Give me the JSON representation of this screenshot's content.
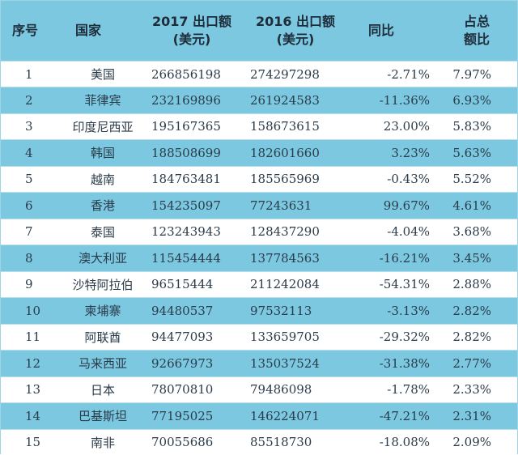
{
  "headers": {
    "rank": "序号",
    "country": "国家",
    "export2017_line1": "2017 出口额",
    "export2017_line2": "(美元)",
    "export2016_line1": "2016 出口额",
    "export2016_line2": "(美元)",
    "yoy": "同比",
    "share_line1": "占总",
    "share_line2": "额比"
  },
  "rows": [
    {
      "rank": "1",
      "country": "美国",
      "export2017": "266856198",
      "export2016": "274297298",
      "yoy": "-2.71%",
      "share": "7.97%"
    },
    {
      "rank": "2",
      "country": "菲律宾",
      "export2017": "232169896",
      "export2016": "261924583",
      "yoy": "-11.36%",
      "share": "6.93%"
    },
    {
      "rank": "3",
      "country": "印度尼西亚",
      "export2017": "195167365",
      "export2016": "158673615",
      "yoy": "23.00%",
      "share": "5.83%"
    },
    {
      "rank": "4",
      "country": "韩国",
      "export2017": "188508699",
      "export2016": "182601660",
      "yoy": "3.23%",
      "share": "5.63%"
    },
    {
      "rank": "5",
      "country": "越南",
      "export2017": "184763481",
      "export2016": "185565969",
      "yoy": "-0.43%",
      "share": "5.52%"
    },
    {
      "rank": "6",
      "country": "香港",
      "export2017": "154235097",
      "export2016": "77243631",
      "yoy": "99.67%",
      "share": "4.61%"
    },
    {
      "rank": "7",
      "country": "泰国",
      "export2017": "123243943",
      "export2016": "128437290",
      "yoy": "-4.04%",
      "share": "3.68%"
    },
    {
      "rank": "8",
      "country": "澳大利亚",
      "export2017": "115454444",
      "export2016": "137784563",
      "yoy": "-16.21%",
      "share": "3.45%"
    },
    {
      "rank": "9",
      "country": "沙特阿拉伯",
      "export2017": "96515444",
      "export2016": "211242084",
      "yoy": "-54.31%",
      "share": "2.88%"
    },
    {
      "rank": "10",
      "country": "柬埔寨",
      "export2017": "94480537",
      "export2016": "97532113",
      "yoy": "-3.13%",
      "share": "2.82%"
    },
    {
      "rank": "11",
      "country": "阿联酋",
      "export2017": "94477093",
      "export2016": "133659705",
      "yoy": "-29.32%",
      "share": "2.82%"
    },
    {
      "rank": "12",
      "country": "马来西亚",
      "export2017": "92667973",
      "export2016": "135037524",
      "yoy": "-31.38%",
      "share": "2.77%"
    },
    {
      "rank": "13",
      "country": "日本",
      "export2017": "78070810",
      "export2016": "79486098",
      "yoy": "-1.78%",
      "share": "2.33%"
    },
    {
      "rank": "14",
      "country": "巴基斯坦",
      "export2017": "77195025",
      "export2016": "146224071",
      "yoy": "-47.21%",
      "share": "2.31%"
    },
    {
      "rank": "15",
      "country": "南非",
      "export2017": "70055686",
      "export2016": "85518730",
      "yoy": "-18.08%",
      "share": "2.09%"
    }
  ]
}
